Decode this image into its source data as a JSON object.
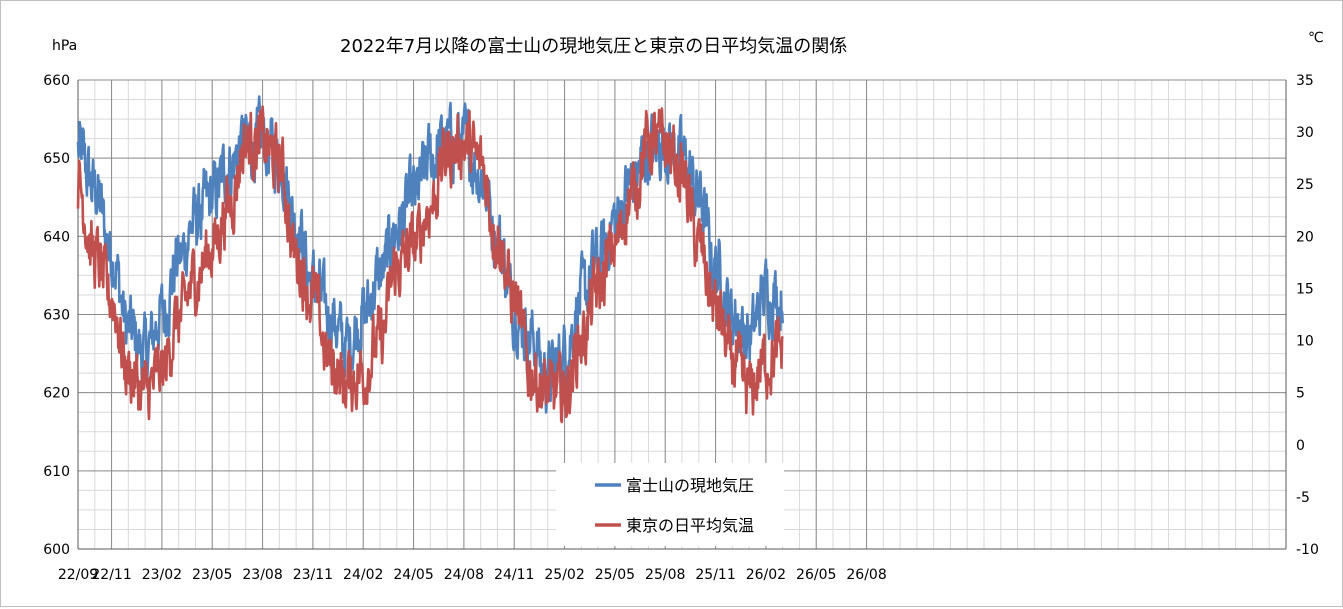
{
  "chart_data": {
    "type": "line",
    "title": "2022年7月以降の富士山の現地気圧と東京の日平均気温の関係",
    "y_left_unit": "hPa",
    "y_right_unit": "℃",
    "y_left_range": [
      600,
      660
    ],
    "y_right_range": [
      -10,
      35
    ],
    "y_left_ticks": [
      "600",
      "610",
      "620",
      "630",
      "640",
      "650",
      "660"
    ],
    "y_right_ticks": [
      "-10",
      "-5",
      "0",
      "5",
      "10",
      "15",
      "20",
      "25",
      "30",
      "35"
    ],
    "x_ticks": [
      "22/09",
      "22/11",
      "23/02",
      "23/05",
      "23/08",
      "23/11",
      "24/02",
      "24/05",
      "24/08",
      "24/11",
      "25/02",
      "25/05",
      "25/08",
      "25/11",
      "26/02",
      "26/05",
      "26/08"
    ],
    "grid": true,
    "legend_position": "bottom-center",
    "colors": {
      "pressure": "#4F81BD",
      "temperature": "#C0504D"
    },
    "series": [
      {
        "name": "富士山の現地気圧",
        "axis": "left",
        "unit": "hPa",
        "points": [
          [
            "22/09",
            651
          ],
          [
            "22/10",
            646
          ],
          [
            "22/11",
            638
          ],
          [
            "22/12",
            628
          ],
          [
            "23/01",
            625
          ],
          [
            "23/02",
            630
          ],
          [
            "23/03",
            637
          ],
          [
            "23/04",
            642
          ],
          [
            "23/05",
            645
          ],
          [
            "23/06",
            649
          ],
          [
            "23/07",
            652
          ],
          [
            "23/08",
            652
          ],
          [
            "23/09",
            650
          ],
          [
            "23/10",
            642
          ],
          [
            "23/11",
            634
          ],
          [
            "23/12",
            630
          ],
          [
            "24/01",
            626
          ],
          [
            "24/02",
            630
          ],
          [
            "24/03",
            635
          ],
          [
            "24/04",
            641
          ],
          [
            "24/05",
            645
          ],
          [
            "24/06",
            650
          ],
          [
            "24/07",
            652
          ],
          [
            "24/08",
            652
          ],
          [
            "24/09",
            648
          ],
          [
            "24/10",
            640
          ],
          [
            "24/11",
            631
          ],
          [
            "24/12",
            627
          ],
          [
            "25/01",
            622
          ],
          [
            "25/02",
            625
          ],
          [
            "25/03",
            632
          ],
          [
            "25/04",
            637
          ],
          [
            "25/05",
            642
          ],
          [
            "25/06",
            647
          ],
          [
            "25/07",
            651
          ],
          [
            "25/08",
            652
          ],
          [
            "25/09",
            650
          ],
          [
            "25/10",
            645
          ],
          [
            "25/11",
            636
          ],
          [
            "25/12",
            630
          ],
          [
            "26/01",
            627
          ],
          [
            "26/02",
            633
          ],
          [
            "26/03",
            632
          ]
        ]
      },
      {
        "name": "東京の日平均気温",
        "axis": "right",
        "unit": "℃",
        "points": [
          [
            "22/09",
            25
          ],
          [
            "22/10",
            18
          ],
          [
            "22/11",
            14
          ],
          [
            "22/12",
            7
          ],
          [
            "23/01",
            5
          ],
          [
            "23/02",
            7
          ],
          [
            "23/03",
            12
          ],
          [
            "23/04",
            16
          ],
          [
            "23/05",
            19
          ],
          [
            "23/06",
            23
          ],
          [
            "23/07",
            29
          ],
          [
            "23/08",
            29
          ],
          [
            "23/09",
            27
          ],
          [
            "23/10",
            18
          ],
          [
            "23/11",
            14
          ],
          [
            "23/12",
            8
          ],
          [
            "24/01",
            6
          ],
          [
            "24/02",
            7
          ],
          [
            "24/03",
            10
          ],
          [
            "24/04",
            17
          ],
          [
            "24/05",
            19
          ],
          [
            "24/06",
            23
          ],
          [
            "24/07",
            28
          ],
          [
            "24/08",
            29
          ],
          [
            "24/09",
            27
          ],
          [
            "24/10",
            20
          ],
          [
            "24/11",
            14
          ],
          [
            "24/12",
            7
          ],
          [
            "25/01",
            5
          ],
          [
            "25/02",
            5
          ],
          [
            "25/03",
            10
          ],
          [
            "25/04",
            15
          ],
          [
            "25/05",
            19
          ],
          [
            "25/06",
            24
          ],
          [
            "25/07",
            29
          ],
          [
            "25/08",
            29
          ],
          [
            "25/09",
            26
          ],
          [
            "25/10",
            19
          ],
          [
            "25/11",
            13
          ],
          [
            "25/12",
            8
          ],
          [
            "26/01",
            5
          ],
          [
            "26/02",
            8
          ],
          [
            "26/03",
            9
          ]
        ]
      }
    ]
  }
}
